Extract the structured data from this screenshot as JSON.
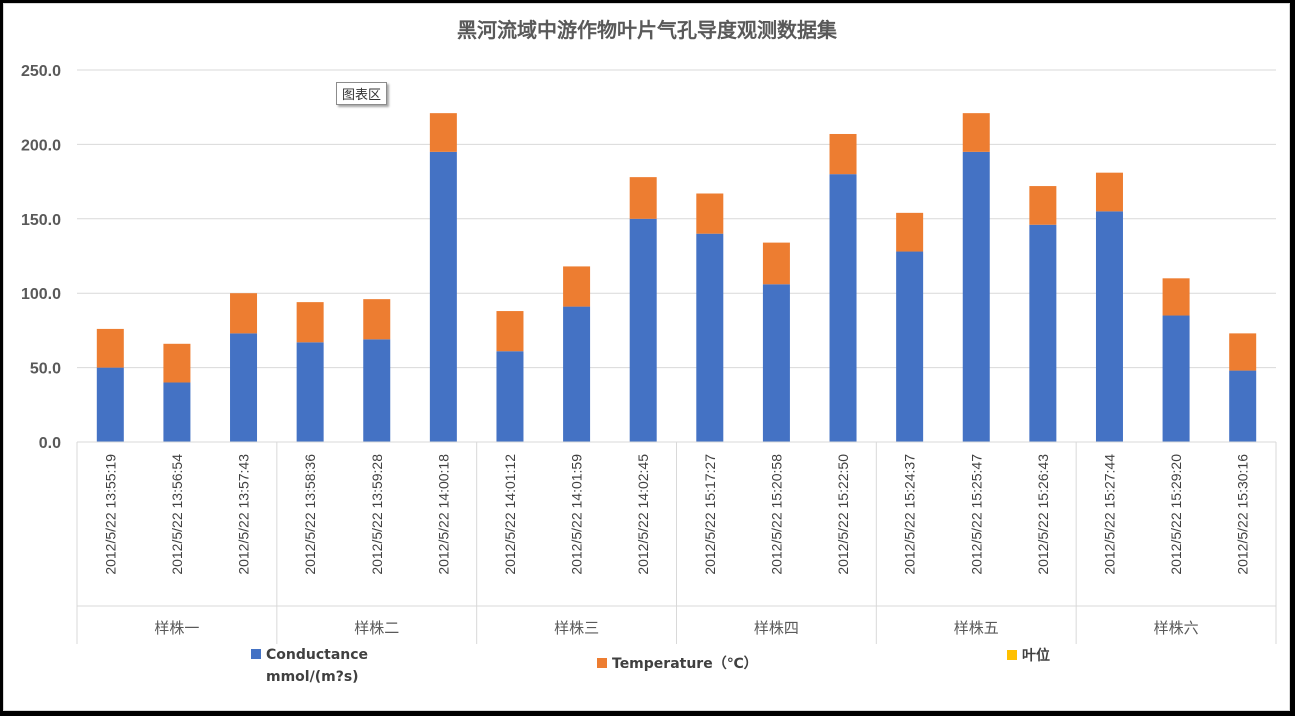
{
  "tooltip": "图表区",
  "colors": {
    "conductance": "#4472C4",
    "temperature": "#ED7D31",
    "leaf": "#FFC000"
  },
  "chart_data": {
    "type": "bar",
    "stacked": true,
    "title": "黑河流域中游作物叶片气孔导度观测数据集",
    "ylim": [
      0,
      250
    ],
    "yticks": [
      "0.0",
      "50.0",
      "100.0",
      "150.0",
      "200.0",
      "250.0"
    ],
    "categories": [
      "2012/5/22 13:55:19",
      "2012/5/22 13:56:54",
      "2012/5/22 13:57:43",
      "2012/5/22 13:58:36",
      "2012/5/22 13:59:28",
      "2012/5/22 14:00:18",
      "2012/5/22 14:01:12",
      "2012/5/22 14:01:59",
      "2012/5/22 14:02:45",
      "2012/5/22 15:17:27",
      "2012/5/22 15:20:58",
      "2012/5/22 15:22:50",
      "2012/5/22 15:24:37",
      "2012/5/22 15:25:47",
      "2012/5/22 15:26:43",
      "2012/5/22 15:27:44",
      "2012/5/22 15:29:20",
      "2012/5/22 15:30:16"
    ],
    "groups": [
      {
        "name": "样株一",
        "size": 3
      },
      {
        "name": "样株二",
        "size": 3
      },
      {
        "name": "样株三",
        "size": 3
      },
      {
        "name": "样株四",
        "size": 3
      },
      {
        "name": "样株五",
        "size": 3
      },
      {
        "name": "样株六",
        "size": 3
      }
    ],
    "series": [
      {
        "name": "Conductance mmol/(m?s)",
        "label_lines": [
          "Conductance",
          "mmol/(m?s)"
        ],
        "color": "#4472C4",
        "values": [
          50,
          40,
          73,
          67,
          69,
          195,
          61,
          91,
          150,
          140,
          106,
          180,
          128,
          195,
          146,
          155,
          85,
          48
        ]
      },
      {
        "name": "Temperature（℃）",
        "label_lines": [
          "Temperature（℃）"
        ],
        "color": "#ED7D31",
        "values": [
          26,
          26,
          27,
          27,
          27,
          26,
          27,
          27,
          28,
          27,
          28,
          27,
          26,
          26,
          26,
          26,
          25,
          25
        ]
      },
      {
        "name": "叶位",
        "label_lines": [
          "叶位"
        ],
        "color": "#FFC000",
        "values": [
          0,
          0,
          0,
          0,
          0,
          0,
          0,
          0,
          0,
          0,
          0,
          0,
          0,
          0,
          0,
          0,
          0,
          0
        ]
      }
    ],
    "legend_position": "bottom"
  }
}
